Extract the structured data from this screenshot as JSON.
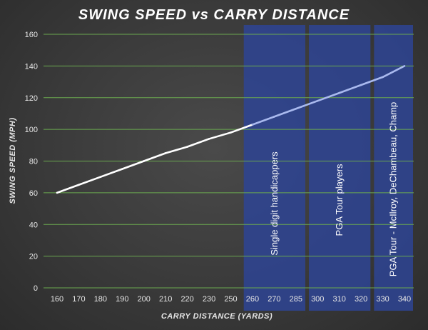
{
  "chart_data": {
    "type": "line",
    "title": "SWING SPEED vs CARRY DISTANCE",
    "xlabel": "CARRY DISTANCE (YARDS)",
    "ylabel": "SWING SPEED (MPH)",
    "x_ticks": [
      160,
      170,
      180,
      190,
      200,
      210,
      220,
      230,
      250,
      260,
      270,
      285,
      300,
      310,
      320,
      330,
      340
    ],
    "ylim": [
      0,
      160
    ],
    "y_ticks": [
      0,
      20,
      40,
      60,
      80,
      100,
      120,
      140,
      160
    ],
    "grid": true,
    "legend": "none",
    "series": [
      {
        "x": [
          160,
          170,
          180,
          190,
          200,
          210,
          220,
          230,
          250,
          260,
          270,
          285,
          300,
          310,
          320,
          330,
          340
        ],
        "y": [
          60,
          65,
          70,
          75,
          80,
          85,
          89,
          94,
          98,
          103,
          108,
          113,
          118,
          123,
          128,
          133,
          140
        ]
      }
    ],
    "bands": [
      {
        "from": 260,
        "to": 285,
        "label": "Single digit handicappers"
      },
      {
        "from": 300,
        "to": 320,
        "label": "PGA Tour players"
      },
      {
        "from": 330,
        "to": 340,
        "label": "PGA Tour - McIlroy, DeChambeau, Champ"
      }
    ],
    "colors": {
      "line": "#ffffff",
      "line_in_band": "#a9b9ee",
      "band_fill": "#2e4494",
      "gridline": "#6aa84f"
    }
  }
}
